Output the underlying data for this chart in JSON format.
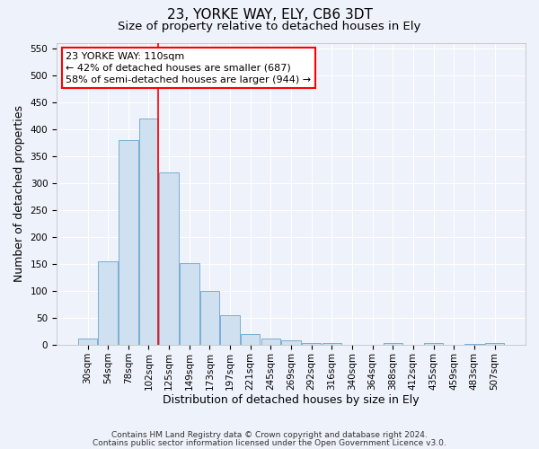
{
  "title": "23, YORKE WAY, ELY, CB6 3DT",
  "subtitle": "Size of property relative to detached houses in Ely",
  "xlabel": "Distribution of detached houses by size in Ely",
  "ylabel": "Number of detached properties",
  "categories": [
    "30sqm",
    "54sqm",
    "78sqm",
    "102sqm",
    "125sqm",
    "149sqm",
    "173sqm",
    "197sqm",
    "221sqm",
    "245sqm",
    "269sqm",
    "292sqm",
    "316sqm",
    "340sqm",
    "364sqm",
    "388sqm",
    "412sqm",
    "435sqm",
    "459sqm",
    "483sqm",
    "507sqm"
  ],
  "values": [
    12,
    155,
    380,
    420,
    320,
    152,
    100,
    55,
    20,
    12,
    8,
    4,
    4,
    1,
    1,
    4,
    1,
    3,
    1,
    2,
    3
  ],
  "bar_color": "#cfe0f0",
  "bar_edge_color": "#7aadd4",
  "annotation_text": "23 YORKE WAY: 110sqm\n← 42% of detached houses are smaller (687)\n58% of semi-detached houses are larger (944) →",
  "ylim": [
    0,
    560
  ],
  "yticks": [
    0,
    50,
    100,
    150,
    200,
    250,
    300,
    350,
    400,
    450,
    500,
    550
  ],
  "footnote1": "Contains HM Land Registry data © Crown copyright and database right 2024.",
  "footnote2": "Contains public sector information licensed under the Open Government Licence v3.0.",
  "background_color": "#eef2fa",
  "grid_color": "#ffffff",
  "title_fontsize": 11,
  "subtitle_fontsize": 9.5,
  "tick_fontsize": 7.5,
  "label_fontsize": 9,
  "footnote_fontsize": 6.5
}
